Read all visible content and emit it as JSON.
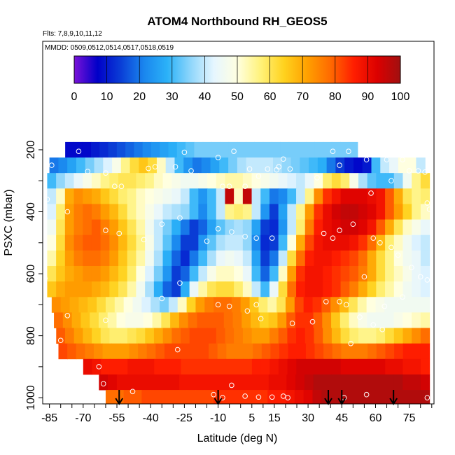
{
  "chart_data": {
    "type": "heatmap",
    "title": "ATOM4 Northbound RH_GEOS5",
    "subtitle_flights": "Flts: 7,8,9,10,11,12",
    "subtitle_dates": "MMDD: 0509,0512,0514,0517,0518,0519",
    "xlabel": "Latitude (deg N)",
    "ylabel": "PSXC (mbar)",
    "xlim": [
      -88,
      86
    ],
    "ylim": [
      1020,
      -150
    ],
    "x_ticks": [
      -85,
      -70,
      -55,
      -40,
      -25,
      -10,
      5,
      15,
      30,
      45,
      60,
      75
    ],
    "y_ticks": [
      200,
      400,
      600,
      800,
      1000
    ],
    "colorbar": {
      "ticks": [
        0,
        10,
        20,
        30,
        40,
        50,
        60,
        70,
        80,
        90,
        100
      ],
      "range": [
        0,
        100
      ],
      "colors": [
        "#7a12d8",
        "#0000c8",
        "#0a3ed6",
        "#1a86ee",
        "#2bb2f8",
        "#8fd6fb",
        "#e6f6ff",
        "#ffffe0",
        "#fff27a",
        "#ffd21e",
        "#ffa000",
        "#ff6a00",
        "#ff1e00",
        "#dc0000",
        "#a01010"
      ]
    },
    "x_step": 4,
    "x_start": -86,
    "pressure_levels": [
      200,
      250,
      300,
      350,
      400,
      450,
      500,
      550,
      600,
      650,
      700,
      750,
      800,
      850,
      900,
      950,
      1000
    ],
    "rows": [
      {
        "p": 200,
        "lat0": -78,
        "lat1": 52,
        "rh": [
          8,
          8,
          8,
          10,
          12,
          14,
          16,
          18,
          20,
          22,
          24,
          26,
          28,
          30,
          32,
          34,
          34,
          34,
          34,
          34,
          34,
          34,
          34,
          34,
          34,
          34,
          34,
          34,
          34,
          34,
          34,
          34,
          34,
          34
        ]
      },
      {
        "p": 250,
        "lat0": -85,
        "lat1": 82,
        "rh": [
          20,
          22,
          26,
          30,
          34,
          38,
          42,
          48,
          56,
          62,
          66,
          62,
          52,
          40,
          30,
          24,
          20,
          22,
          26,
          30,
          34,
          38,
          40,
          40,
          40,
          38,
          36,
          34,
          32,
          30,
          28,
          20,
          14,
          10,
          8,
          10,
          30,
          40,
          44,
          50,
          50,
          40
        ]
      },
      {
        "p": 300,
        "lat0": -86,
        "lat1": 84,
        "rh": [
          30,
          36,
          40,
          44,
          48,
          52,
          56,
          58,
          60,
          60,
          58,
          56,
          52,
          50,
          48,
          46,
          46,
          48,
          50,
          52,
          54,
          54,
          52,
          50,
          48,
          46,
          44,
          42,
          40,
          44,
          50,
          58,
          62,
          58,
          48,
          38,
          32,
          30,
          30,
          36,
          46,
          56,
          62
        ]
      },
      {
        "p": 350,
        "lat0": -86,
        "lat1": 84,
        "rh": [
          40,
          52,
          70,
          74,
          72,
          70,
          66,
          62,
          58,
          56,
          52,
          50,
          48,
          46,
          44,
          40,
          30,
          24,
          30,
          40,
          96,
          52,
          96,
          40,
          30,
          20,
          22,
          30,
          40,
          56,
          74,
          84,
          88,
          92,
          92,
          92,
          90,
          88,
          80,
          70,
          60,
          56,
          58
        ]
      },
      {
        "p": 400,
        "lat0": -86,
        "lat1": 84,
        "rh": [
          42,
          58,
          72,
          76,
          78,
          76,
          72,
          68,
          62,
          56,
          52,
          48,
          44,
          40,
          38,
          36,
          30,
          22,
          30,
          40,
          56,
          58,
          56,
          40,
          24,
          14,
          26,
          40,
          56,
          72,
          84,
          90,
          94,
          96,
          96,
          94,
          92,
          88,
          80,
          72,
          64,
          56,
          52
        ]
      },
      {
        "p": 450,
        "lat0": -86,
        "lat1": 84,
        "rh": [
          46,
          60,
          72,
          76,
          78,
          80,
          76,
          72,
          66,
          60,
          54,
          46,
          40,
          34,
          28,
          20,
          14,
          18,
          26,
          32,
          36,
          38,
          36,
          26,
          14,
          12,
          24,
          40,
          58,
          76,
          86,
          90,
          92,
          94,
          94,
          92,
          88,
          80,
          70,
          60,
          52,
          48,
          44
        ]
      },
      {
        "p": 500,
        "lat0": -86,
        "lat1": 84,
        "rh": [
          50,
          62,
          74,
          78,
          80,
          80,
          78,
          74,
          68,
          62,
          56,
          48,
          40,
          32,
          22,
          14,
          14,
          24,
          32,
          38,
          40,
          40,
          36,
          22,
          12,
          14,
          30,
          50,
          70,
          82,
          88,
          90,
          90,
          90,
          88,
          84,
          78,
          68,
          58,
          52,
          46,
          42,
          40
        ]
      },
      {
        "p": 550,
        "lat0": -86,
        "lat1": 84,
        "rh": [
          54,
          64,
          72,
          76,
          78,
          78,
          76,
          72,
          66,
          60,
          54,
          46,
          38,
          28,
          18,
          12,
          20,
          30,
          38,
          44,
          46,
          44,
          40,
          26,
          14,
          20,
          40,
          62,
          78,
          86,
          88,
          88,
          86,
          84,
          82,
          78,
          70,
          62,
          56,
          50,
          46,
          44,
          40
        ]
      },
      {
        "p": 600,
        "lat0": -86,
        "lat1": 84,
        "rh": [
          60,
          66,
          70,
          72,
          74,
          74,
          72,
          68,
          64,
          58,
          50,
          42,
          34,
          24,
          14,
          18,
          30,
          40,
          48,
          52,
          52,
          50,
          44,
          30,
          18,
          30,
          52,
          72,
          84,
          88,
          88,
          86,
          84,
          82,
          80,
          76,
          70,
          62,
          56,
          52,
          48,
          44,
          42
        ]
      },
      {
        "p": 650,
        "lat0": -86,
        "lat1": 84,
        "rh": [
          66,
          70,
          72,
          72,
          72,
          70,
          68,
          64,
          60,
          54,
          46,
          38,
          28,
          18,
          14,
          28,
          44,
          54,
          60,
          62,
          62,
          58,
          52,
          40,
          30,
          44,
          62,
          78,
          86,
          88,
          88,
          86,
          84,
          80,
          76,
          70,
          64,
          58,
          54,
          50,
          46,
          44,
          42
        ]
      },
      {
        "p": 700,
        "lat0": -84,
        "lat1": 84,
        "rh": [
          74,
          72,
          70,
          68,
          66,
          62,
          58,
          54,
          50,
          46,
          42,
          38,
          34,
          40,
          52,
          64,
          72,
          76,
          78,
          78,
          76,
          72,
          66,
          58,
          54,
          60,
          72,
          82,
          86,
          84,
          80,
          74,
          68,
          60,
          54,
          50,
          48,
          46,
          46,
          46,
          46,
          46
        ]
      },
      {
        "p": 750,
        "lat0": -83,
        "lat1": 84,
        "rh": [
          78,
          74,
          70,
          66,
          62,
          58,
          54,
          50,
          48,
          48,
          50,
          54,
          60,
          68,
          74,
          78,
          80,
          80,
          80,
          78,
          76,
          72,
          68,
          64,
          66,
          72,
          80,
          84,
          84,
          80,
          74,
          66,
          58,
          52,
          48,
          46,
          46,
          46,
          48,
          50,
          52,
          54
        ]
      },
      {
        "p": 800,
        "lat0": -82,
        "lat1": 84,
        "rh": [
          80,
          76,
          72,
          68,
          64,
          60,
          58,
          58,
          60,
          62,
          66,
          70,
          74,
          78,
          80,
          82,
          82,
          82,
          80,
          78,
          76,
          74,
          72,
          72,
          76,
          80,
          84,
          86,
          84,
          80,
          74,
          68,
          62,
          58,
          56,
          56,
          58,
          62,
          66,
          70,
          74,
          78
        ]
      },
      {
        "p": 850,
        "lat0": -81,
        "lat1": 84,
        "rh": [
          82,
          80,
          78,
          76,
          74,
          72,
          72,
          72,
          74,
          76,
          78,
          80,
          82,
          82,
          82,
          82,
          82,
          80,
          78,
          76,
          76,
          76,
          78,
          80,
          82,
          84,
          86,
          86,
          84,
          82,
          80,
          78,
          76,
          76,
          76,
          78,
          80,
          82,
          84,
          86,
          86,
          86
        ]
      },
      {
        "p": 900,
        "lat0": -70,
        "lat1": 84,
        "rh": [
          90,
          88,
          86,
          86,
          86,
          88,
          88,
          88,
          86,
          86,
          86,
          84,
          84,
          84,
          84,
          84,
          84,
          84,
          84,
          86,
          86,
          88,
          90,
          92,
          94,
          94,
          94,
          94,
          94,
          92,
          92,
          92,
          92,
          92,
          90,
          90,
          88,
          88,
          86
        ]
      },
      {
        "p": 950,
        "lat0": -63,
        "lat1": 84,
        "rh": [
          94,
          92,
          90,
          90,
          90,
          90,
          90,
          90,
          90,
          88,
          88,
          88,
          88,
          88,
          88,
          88,
          88,
          88,
          88,
          90,
          90,
          92,
          94,
          96,
          98,
          98,
          98,
          98,
          98,
          98,
          98,
          98,
          98,
          98,
          96,
          96,
          94
        ]
      },
      {
        "p": 1000,
        "lat0": -60,
        "lat1": 84,
        "rh": [
          78,
          78,
          80,
          80,
          82,
          82,
          82,
          82,
          82,
          82,
          82,
          82,
          84,
          84,
          84,
          84,
          84,
          84,
          86,
          86,
          88,
          90,
          92,
          96,
          98,
          98,
          98,
          98,
          98,
          98,
          98,
          98,
          98,
          98,
          98,
          98
        ]
      }
    ],
    "points": [
      [
        -86,
        215
      ],
      [
        -84,
        250
      ],
      [
        -72,
        205
      ],
      [
        -68,
        270
      ],
      [
        -60,
        275
      ],
      [
        -56,
        318
      ],
      [
        -53,
        318
      ],
      [
        -41,
        260
      ],
      [
        -38,
        255
      ],
      [
        -29,
        255
      ],
      [
        -25,
        208
      ],
      [
        -22,
        268
      ],
      [
        -10,
        225
      ],
      [
        -8,
        318
      ],
      [
        -5,
        318
      ],
      [
        -3,
        205
      ],
      [
        2,
        318
      ],
      [
        4,
        262
      ],
      [
        8,
        285
      ],
      [
        12,
        262
      ],
      [
        16,
        265
      ],
      [
        17,
        255
      ],
      [
        19,
        230
      ],
      [
        22,
        262
      ],
      [
        34,
        290
      ],
      [
        41,
        205
      ],
      [
        44,
        250
      ],
      [
        48,
        205
      ],
      [
        56,
        232
      ],
      [
        58,
        340
      ],
      [
        65,
        232
      ],
      [
        67,
        300
      ],
      [
        72,
        232
      ],
      [
        75,
        268
      ],
      [
        79,
        268
      ],
      [
        82,
        272
      ],
      [
        83,
        372
      ],
      [
        84,
        392
      ],
      [
        -86,
        360
      ],
      [
        -77,
        400
      ],
      [
        -60,
        460
      ],
      [
        -54,
        470
      ],
      [
        -43,
        490
      ],
      [
        -35,
        440
      ],
      [
        -27,
        420
      ],
      [
        -15,
        495
      ],
      [
        -10,
        455
      ],
      [
        -4,
        465
      ],
      [
        2,
        480
      ],
      [
        7,
        485
      ],
      [
        14,
        485
      ],
      [
        37,
        470
      ],
      [
        41,
        485
      ],
      [
        44,
        460
      ],
      [
        50,
        440
      ],
      [
        55,
        610
      ],
      [
        59,
        485
      ],
      [
        62,
        500
      ],
      [
        67,
        515
      ],
      [
        70,
        540
      ],
      [
        76,
        580
      ],
      [
        80,
        610
      ],
      [
        83,
        620
      ],
      [
        -87,
        615
      ],
      [
        -77,
        735
      ],
      [
        -60,
        750
      ],
      [
        -35,
        680
      ],
      [
        -27,
        630
      ],
      [
        -10,
        700
      ],
      [
        -5,
        705
      ],
      [
        3,
        720
      ],
      [
        7,
        700
      ],
      [
        9,
        745
      ],
      [
        23,
        760
      ],
      [
        32,
        755
      ],
      [
        38,
        690
      ],
      [
        44,
        690
      ],
      [
        47,
        700
      ],
      [
        53,
        740
      ],
      [
        59,
        765
      ],
      [
        63,
        780
      ],
      [
        64,
        705
      ],
      [
        72,
        675
      ],
      [
        -80,
        815
      ],
      [
        -63,
        900
      ],
      [
        -61,
        955
      ],
      [
        -48,
        980
      ],
      [
        -28,
        845
      ],
      [
        -12,
        990
      ],
      [
        -8,
        1000
      ],
      [
        -4,
        960
      ],
      [
        2,
        995
      ],
      [
        8,
        998
      ],
      [
        14,
        998
      ],
      [
        19,
        995
      ],
      [
        21,
        1000
      ],
      [
        46,
        1000
      ],
      [
        49,
        825
      ],
      [
        56,
        990
      ],
      [
        83,
        1000
      ]
    ],
    "flight_markers": [
      -54,
      -10,
      39,
      45,
      68
    ]
  }
}
